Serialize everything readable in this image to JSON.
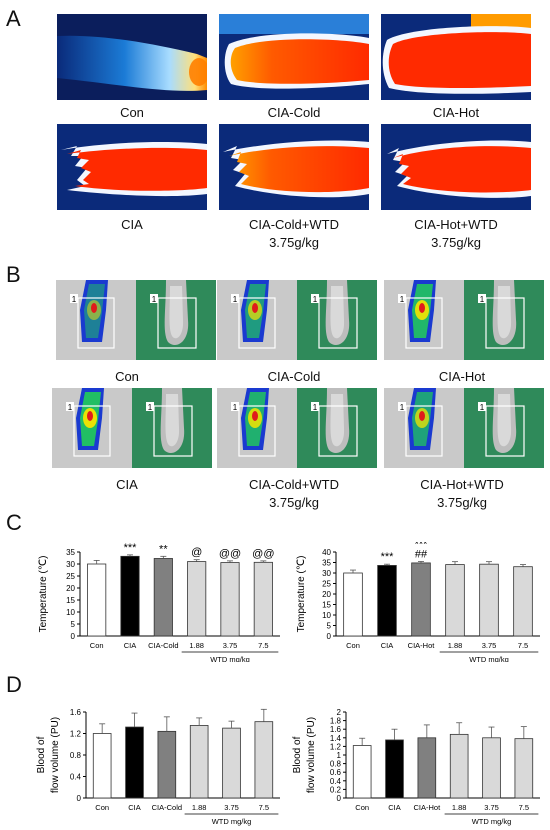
{
  "panels": {
    "a": "A",
    "b": "B",
    "c": "C",
    "d": "D"
  },
  "panel_a": {
    "row1": [
      "Con",
      "CIA-Cold",
      "CIA-Hot"
    ],
    "row2": [
      {
        "line1": "CIA",
        "line2": ""
      },
      {
        "line1": "CIA-Cold+WTD",
        "line2": "3.75g/kg"
      },
      {
        "line1": "CIA-Hot+WTD",
        "line2": "3.75g/kg"
      }
    ]
  },
  "panel_b": {
    "roi_label": "1",
    "row1": [
      "Con",
      "CIA-Cold",
      "CIA-Hot"
    ],
    "row2": [
      {
        "line1": "CIA",
        "line2": ""
      },
      {
        "line1": "CIA-Cold+WTD",
        "line2": "3.75g/kg"
      },
      {
        "line1": "CIA-Hot+WTD",
        "line2": "3.75g/kg"
      }
    ]
  },
  "chart_data": [
    {
      "type": "bar",
      "ylabel": "Temperature (℃)",
      "ylim": [
        0,
        35
      ],
      "yticks": [
        0,
        5,
        10,
        15,
        20,
        25,
        30,
        35
      ],
      "categories": [
        "Con",
        "CIA",
        "CIA-Cold",
        "1.88",
        "3.75",
        "7.5"
      ],
      "values": [
        30.0,
        33.2,
        32.3,
        31.0,
        30.6,
        30.7
      ],
      "errors": [
        1.5,
        0.6,
        0.9,
        0.8,
        0.7,
        0.6
      ],
      "colors": [
        "#ffffff",
        "#000000",
        "#808080",
        "#d9d9d9",
        "#d9d9d9",
        "#d9d9d9"
      ],
      "annotations": [
        "",
        "***",
        "**",
        "@",
        "@@",
        "@@"
      ],
      "group_label": "WTD mg/kg"
    },
    {
      "type": "bar",
      "ylabel": "Temperature (℃)",
      "ylim": [
        0,
        40
      ],
      "yticks": [
        0,
        5,
        10,
        15,
        20,
        25,
        30,
        35,
        40
      ],
      "categories": [
        "Con",
        "CIA",
        "CIA-Hot",
        "1.88",
        "3.75",
        "7.5"
      ],
      "values": [
        30.0,
        33.6,
        34.8,
        34.0,
        34.2,
        33.0
      ],
      "errors": [
        1.4,
        0.6,
        0.7,
        1.4,
        1.2,
        1.0
      ],
      "colors": [
        "#ffffff",
        "#000000",
        "#808080",
        "#d9d9d9",
        "#d9d9d9",
        "#d9d9d9"
      ],
      "annotations": [
        "",
        "***",
        "***\n##",
        "",
        "",
        ""
      ],
      "group_label": "WTD mg/kg"
    },
    {
      "type": "bar",
      "ylabel": "Blood of flow volume (PU)",
      "ylim": [
        0,
        1.6
      ],
      "yticks": [
        0,
        0.4,
        0.8,
        1.2,
        1.6
      ],
      "categories": [
        "Con",
        "CIA",
        "CIA-Cold",
        "1.88",
        "3.75",
        "7.5"
      ],
      "values": [
        1.2,
        1.32,
        1.24,
        1.35,
        1.3,
        1.42
      ],
      "errors": [
        0.18,
        0.26,
        0.27,
        0.14,
        0.13,
        0.23
      ],
      "colors": [
        "#ffffff",
        "#000000",
        "#808080",
        "#d9d9d9",
        "#d9d9d9",
        "#d9d9d9"
      ],
      "annotations": [
        "",
        "",
        "",
        "",
        "",
        ""
      ],
      "group_label": "WTD mg/kg"
    },
    {
      "type": "bar",
      "ylabel": "Blood of flow volume (PU)",
      "ylim": [
        0,
        2
      ],
      "yticks": [
        0,
        0.2,
        0.4,
        0.6,
        0.8,
        1,
        1.2,
        1.4,
        1.6,
        1.8,
        2
      ],
      "categories": [
        "Con",
        "CIA",
        "CIA-Hot",
        "1.88",
        "3.75",
        "7.5"
      ],
      "values": [
        1.22,
        1.35,
        1.4,
        1.48,
        1.4,
        1.38
      ],
      "errors": [
        0.17,
        0.25,
        0.3,
        0.27,
        0.25,
        0.28
      ],
      "colors": [
        "#ffffff",
        "#000000",
        "#808080",
        "#d9d9d9",
        "#d9d9d9",
        "#d9d9d9"
      ],
      "annotations": [
        "",
        "",
        "",
        "",
        "",
        ""
      ],
      "group_label": "WTD mg/kg"
    }
  ]
}
